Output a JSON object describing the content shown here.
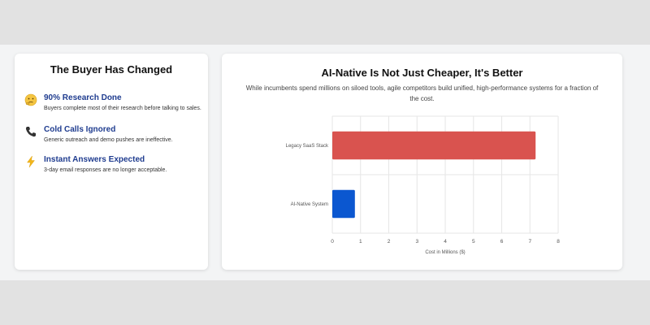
{
  "left_card": {
    "title": "The Buyer Has Changed",
    "items": [
      {
        "icon": "thinking-face-icon",
        "title": "90% Research Done",
        "desc": "Buyers complete most of their research before talking to sales."
      },
      {
        "icon": "phone-icon",
        "title": "Cold Calls Ignored",
        "desc": "Generic outreach and demo pushes are ineffective."
      },
      {
        "icon": "lightning-icon",
        "title": "Instant Answers Expected",
        "desc": "3-day email responses are no longer acceptable."
      }
    ]
  },
  "right_card": {
    "title": "AI-Native Is Not Just Cheaper, It's Better",
    "subtitle": "While incumbents spend millions on siloed tools, agile competitors build unified, high-performance systems for a fraction of the cost."
  },
  "chart_data": {
    "type": "bar",
    "orientation": "horizontal",
    "categories": [
      "Legacy SaaS Stack",
      "AI-Native System"
    ],
    "values": [
      7.2,
      0.8
    ],
    "colors": [
      "#d9534f",
      "#0b57d0"
    ],
    "xlabel": "Cost in Millions ($)",
    "ylabel": "",
    "xlim": [
      0,
      8
    ],
    "xticks": [
      "0",
      "1",
      "2",
      "3",
      "4",
      "5",
      "6",
      "7",
      "8"
    ],
    "grid": true
  }
}
